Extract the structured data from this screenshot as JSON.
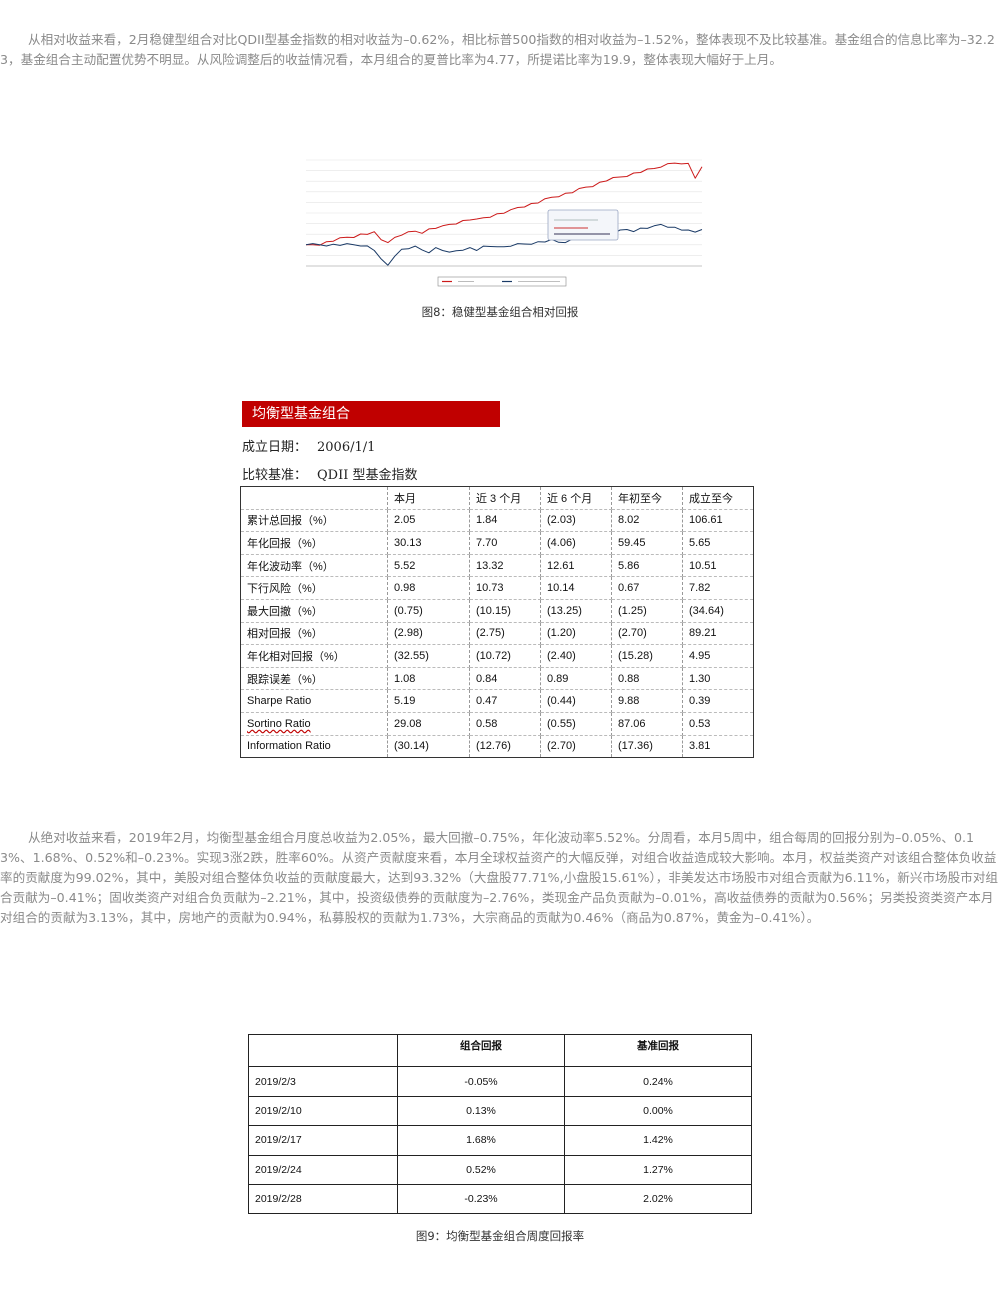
{
  "paragraph1": "从相对收益来看，2月稳健型组合对比QDII型基金指数的相对收益为–0.62%，相比标普500指数的相对收益为–1.52%，整体表现不及比较基准。基金组合的信息比率为–32.23，基金组合主动配置优势不明显。从风险调整后的收益情况看，本月组合的夏普比率为4.77，所提诺比率为19.9，整体表现大幅好于上月。",
  "figure8_caption": "图8：稳健型基金组合相对回报",
  "chart_data": {
    "type": "line",
    "title": "",
    "xlabel": "",
    "ylabel": "",
    "ylim": [
      -25,
      100
    ],
    "grid": true,
    "legend_position": "bottom",
    "series": [
      {
        "name": "",
        "color": "#cc1a1a",
        "values": [
          0,
          0,
          1,
          3,
          5,
          7,
          9,
          10,
          12,
          13,
          14,
          6,
          4,
          8,
          12,
          14,
          16,
          15,
          18,
          20,
          21,
          24,
          26,
          28,
          30,
          29,
          32,
          34,
          36,
          38,
          40,
          44,
          46,
          48,
          50,
          53,
          56,
          58,
          60,
          62,
          65,
          68,
          70,
          73,
          76,
          78,
          80,
          82,
          84,
          86,
          88,
          90,
          93,
          95,
          97,
          94,
          96,
          80,
          92
        ]
      },
      {
        "name": "",
        "color": "#1a3a66",
        "values": [
          0,
          0,
          0,
          0,
          0,
          0,
          0,
          0,
          0,
          -2,
          -6,
          -18,
          -24,
          -12,
          -6,
          -4,
          -3,
          -6,
          -8,
          -4,
          -6,
          -10,
          -7,
          -5,
          -4,
          -6,
          -3,
          -2,
          -1,
          -3,
          -1,
          0,
          1,
          2,
          3,
          4,
          5,
          3,
          4,
          6,
          7,
          8,
          9,
          10,
          12,
          14,
          16,
          18,
          17,
          19,
          20,
          21,
          24,
          22,
          20,
          18,
          16,
          15,
          18
        ]
      }
    ]
  },
  "fund": {
    "title": "均衡型基金组合",
    "inception_label": "成立日期：",
    "inception_value": "2006/1/1",
    "benchmark_label": "比较基准：",
    "benchmark_value": "QDII 型基金指数"
  },
  "metrics": {
    "headers": [
      "",
      "本月",
      "近 3 个月",
      "近 6 个月",
      "年初至今",
      "成立至今"
    ],
    "rows": [
      [
        "累计总回报（%）",
        "2.05",
        "1.84",
        "(2.03)",
        "8.02",
        "106.61"
      ],
      [
        "年化回报（%）",
        "30.13",
        "7.70",
        "(4.06)",
        "59.45",
        "5.65"
      ],
      [
        "年化波动率（%）",
        "5.52",
        "13.32",
        "12.61",
        "5.86",
        "10.51"
      ],
      [
        "下行风险（%）",
        "0.98",
        "10.73",
        "10.14",
        "0.67",
        "7.82"
      ],
      [
        "最大回撤（%）",
        "(0.75)",
        "(10.15)",
        "(13.25)",
        "(1.25)",
        "(34.64)"
      ],
      [
        "相对回报（%）",
        "(2.98)",
        "(2.75)",
        "(1.20)",
        "(2.70)",
        "89.21"
      ],
      [
        "年化相对回报（%）",
        "(32.55)",
        "(10.72)",
        "(2.40)",
        "(15.28)",
        "4.95"
      ],
      [
        "跟踪误差（%）",
        "1.08",
        "0.84",
        "0.89",
        "0.88",
        "1.30"
      ],
      [
        "Sharpe Ratio",
        "5.19",
        "0.47",
        "(0.44)",
        "9.88",
        "0.39"
      ],
      [
        "Sortino Ratio",
        "29.08",
        "0.58",
        "(0.55)",
        "87.06",
        "0.53"
      ],
      [
        "Information Ratio",
        "(30.14)",
        "(12.76)",
        "(2.70)",
        "(17.36)",
        "3.81"
      ]
    ]
  },
  "paragraph2": "从绝对收益来看，2019年2月，均衡型基金组合月度总收益为2.05%，最大回撤–0.75%，年化波动率5.52%。分周看，本月5周中，组合每周的回报分别为–0.05%、0.13%、1.68%、0.52%和–0.23%。实现3涨2跌，胜率60%。从资产贡献度来看，本月全球权益资产的大幅反弹，对组合收益造成较大影响。本月，权益类资产对该组合整体负收益率的贡献度为99.02%，其中，美股对组合整体负收益的贡献度最大，达到93.32%（大盘股77.71%,小盘股15.61%），非美发达市场股市对组合贡献为6.11%，新兴市场股市对组合贡献为–0.41%；固收类资产对组合负贡献为–2.21%，其中，投资级债券的贡献度为–2.76%，类现金产品负贡献为–0.01%，高收益债券的贡献为0.56%；另类投资类资产本月对组合的贡献为3.13%，其中，房地产的贡献为0.94%，私募股权的贡献为1.73%，大宗商品的贡献为0.46%（商品为0.87%，黄金为–0.41%）。",
  "weekly": {
    "headers": [
      "",
      "组合回报",
      "基准回报"
    ],
    "rows": [
      [
        "2019/2/3",
        "-0.05%",
        "0.24%"
      ],
      [
        "2019/2/10",
        "0.13%",
        "0.00%"
      ],
      [
        "2019/2/17",
        "1.68%",
        "1.42%"
      ],
      [
        "2019/2/24",
        "0.52%",
        "1.27%"
      ],
      [
        "2019/2/28",
        "-0.23%",
        "2.02%"
      ]
    ]
  },
  "figure9_caption": "图9：均衡型基金组合周度回报率"
}
